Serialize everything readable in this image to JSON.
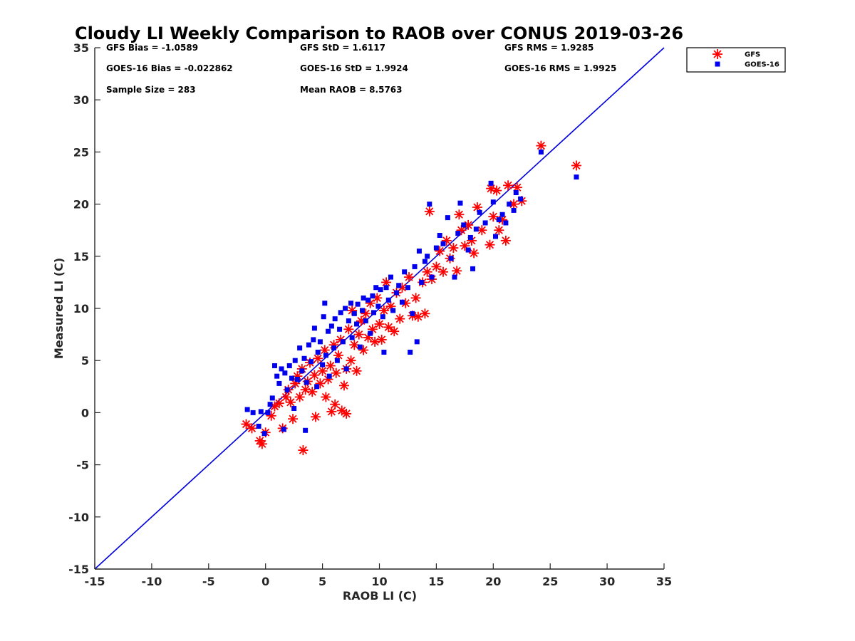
{
  "chart_data": {
    "type": "scatter",
    "title": "Cloudy LI Weekly Comparison to RAOB over CONUS 2019-03-26",
    "xlabel": "RAOB LI (C)",
    "ylabel": "Measured LI (C)",
    "xlim": [
      -15,
      35
    ],
    "ylim": [
      -15,
      35
    ],
    "xticks": [
      -15,
      -10,
      -5,
      0,
      5,
      10,
      15,
      20,
      25,
      30,
      35
    ],
    "yticks": [
      -15,
      -10,
      -5,
      0,
      5,
      10,
      15,
      20,
      25,
      30,
      35
    ],
    "grid": false,
    "legend_position": "top-right-outside",
    "stats": [
      {
        "text": "GFS Bias = -1.0589",
        "col": 0,
        "row": 0
      },
      {
        "text": "GFS StD = 1.6117",
        "col": 1,
        "row": 0
      },
      {
        "text": "GFS RMS = 1.9285",
        "col": 2,
        "row": 0
      },
      {
        "text": "GOES-16 Bias = -0.022862",
        "col": 0,
        "row": 1
      },
      {
        "text": "GOES-16 StD = 1.9924",
        "col": 1,
        "row": 1
      },
      {
        "text": "GOES-16 RMS = 1.9925",
        "col": 2,
        "row": 1
      },
      {
        "text": "Sample Size = 283",
        "col": 0,
        "row": 2
      },
      {
        "text": "Mean RAOB = 8.5763",
        "col": 1,
        "row": 2
      }
    ],
    "reference_line": {
      "from": [
        -15,
        -15
      ],
      "to": [
        35,
        35
      ],
      "color": "#0000dd"
    },
    "series": [
      {
        "name": "GFS",
        "marker": "asterisk",
        "color": "#ff0000",
        "points": [
          [
            -1.7,
            -1.1
          ],
          [
            -1.2,
            -1.5
          ],
          [
            -0.5,
            -2.7
          ],
          [
            -0.3,
            -3.0
          ],
          [
            0.0,
            -1.9
          ],
          [
            0.5,
            -0.3
          ],
          [
            0.8,
            0.6
          ],
          [
            1.2,
            0.9
          ],
          [
            1.5,
            -1.5
          ],
          [
            1.8,
            1.5
          ],
          [
            2.0,
            2.2
          ],
          [
            2.2,
            1.0
          ],
          [
            2.4,
            -0.6
          ],
          [
            2.6,
            2.8
          ],
          [
            2.8,
            3.5
          ],
          [
            3.0,
            1.5
          ],
          [
            3.2,
            4.2
          ],
          [
            3.3,
            -3.6
          ],
          [
            3.5,
            2.2
          ],
          [
            3.7,
            3.0
          ],
          [
            3.9,
            4.8
          ],
          [
            4.1,
            2.0
          ],
          [
            4.3,
            3.6
          ],
          [
            4.4,
            -0.4
          ],
          [
            4.6,
            5.2
          ],
          [
            4.8,
            2.8
          ],
          [
            5.0,
            4.0
          ],
          [
            5.2,
            6.0
          ],
          [
            5.3,
            1.5
          ],
          [
            5.5,
            3.2
          ],
          [
            5.7,
            4.5
          ],
          [
            5.8,
            0.1
          ],
          [
            6.0,
            6.5
          ],
          [
            6.1,
            0.8
          ],
          [
            6.2,
            3.8
          ],
          [
            6.4,
            5.5
          ],
          [
            6.6,
            7.0
          ],
          [
            6.7,
            0.2
          ],
          [
            6.9,
            2.6
          ],
          [
            7.1,
            -0.1
          ],
          [
            7.1,
            4.2
          ],
          [
            7.3,
            8.0
          ],
          [
            7.5,
            5.0
          ],
          [
            7.6,
            9.8
          ],
          [
            7.8,
            6.5
          ],
          [
            8.0,
            4.0
          ],
          [
            8.2,
            7.5
          ],
          [
            8.4,
            8.8
          ],
          [
            8.6,
            6.0
          ],
          [
            8.8,
            9.5
          ],
          [
            9.0,
            7.2
          ],
          [
            9.2,
            10.5
          ],
          [
            9.4,
            8.0
          ],
          [
            9.6,
            6.8
          ],
          [
            9.8,
            11.0
          ],
          [
            10.0,
            8.5
          ],
          [
            10.2,
            7.0
          ],
          [
            10.4,
            9.8
          ],
          [
            10.6,
            12.5
          ],
          [
            10.8,
            8.2
          ],
          [
            11.0,
            10.2
          ],
          [
            11.3,
            7.8
          ],
          [
            11.5,
            11.5
          ],
          [
            11.8,
            9.0
          ],
          [
            12.0,
            12.0
          ],
          [
            12.3,
            10.5
          ],
          [
            12.6,
            13.0
          ],
          [
            12.9,
            9.3
          ],
          [
            13.2,
            11.0
          ],
          [
            13.4,
            9.2
          ],
          [
            13.8,
            12.5
          ],
          [
            14.0,
            9.5
          ],
          [
            14.2,
            13.5
          ],
          [
            14.4,
            19.3
          ],
          [
            14.6,
            12.8
          ],
          [
            15.0,
            14.0
          ],
          [
            15.3,
            15.5
          ],
          [
            15.6,
            13.5
          ],
          [
            15.9,
            16.5
          ],
          [
            16.2,
            14.8
          ],
          [
            16.5,
            15.8
          ],
          [
            16.8,
            13.6
          ],
          [
            17.0,
            19.0
          ],
          [
            17.2,
            17.5
          ],
          [
            17.5,
            16.0
          ],
          [
            17.8,
            18.0
          ],
          [
            18.1,
            16.5
          ],
          [
            18.3,
            15.3
          ],
          [
            18.6,
            19.7
          ],
          [
            19.0,
            17.5
          ],
          [
            19.7,
            16.1
          ],
          [
            19.8,
            21.5
          ],
          [
            20.0,
            18.8
          ],
          [
            20.3,
            21.3
          ],
          [
            20.5,
            17.5
          ],
          [
            20.8,
            18.5
          ],
          [
            21.1,
            16.5
          ],
          [
            21.3,
            21.8
          ],
          [
            21.8,
            20.0
          ],
          [
            22.1,
            21.6
          ],
          [
            22.5,
            20.3
          ],
          [
            24.2,
            25.6
          ],
          [
            27.3,
            23.7
          ]
        ]
      },
      {
        "name": "GOES-16",
        "marker": "square",
        "color": "#0000ee",
        "points": [
          [
            -1.6,
            0.3
          ],
          [
            -1.1,
            0.0
          ],
          [
            -0.6,
            -1.3
          ],
          [
            -0.4,
            0.1
          ],
          [
            -0.1,
            -2.0
          ],
          [
            0.2,
            0.0
          ],
          [
            0.4,
            0.8
          ],
          [
            0.6,
            1.4
          ],
          [
            0.8,
            4.5
          ],
          [
            1.0,
            3.5
          ],
          [
            1.2,
            2.8
          ],
          [
            1.4,
            4.2
          ],
          [
            1.6,
            -1.6
          ],
          [
            1.7,
            3.8
          ],
          [
            1.9,
            2.2
          ],
          [
            2.1,
            4.5
          ],
          [
            2.3,
            3.3
          ],
          [
            2.5,
            0.4
          ],
          [
            2.6,
            5.0
          ],
          [
            2.8,
            3.2
          ],
          [
            3.0,
            6.2
          ],
          [
            3.2,
            4.0
          ],
          [
            3.4,
            5.2
          ],
          [
            3.5,
            -1.7
          ],
          [
            3.6,
            2.9
          ],
          [
            3.8,
            6.5
          ],
          [
            4.0,
            4.9
          ],
          [
            4.2,
            7.0
          ],
          [
            4.3,
            8.1
          ],
          [
            4.5,
            2.5
          ],
          [
            4.6,
            5.8
          ],
          [
            4.8,
            6.8
          ],
          [
            5.0,
            4.6
          ],
          [
            5.1,
            9.2
          ],
          [
            5.2,
            10.5
          ],
          [
            5.3,
            5.5
          ],
          [
            5.5,
            7.8
          ],
          [
            5.6,
            3.5
          ],
          [
            5.8,
            8.3
          ],
          [
            6.0,
            6.2
          ],
          [
            6.1,
            9.0
          ],
          [
            6.3,
            5.0
          ],
          [
            6.5,
            8.0
          ],
          [
            6.6,
            9.6
          ],
          [
            6.8,
            6.8
          ],
          [
            7.0,
            10.0
          ],
          [
            7.1,
            4.2
          ],
          [
            7.3,
            8.8
          ],
          [
            7.5,
            10.5
          ],
          [
            7.6,
            7.2
          ],
          [
            7.8,
            9.5
          ],
          [
            8.0,
            8.5
          ],
          [
            8.1,
            10.4
          ],
          [
            8.3,
            6.3
          ],
          [
            8.5,
            9.8
          ],
          [
            8.6,
            11.0
          ],
          [
            8.8,
            8.8
          ],
          [
            9.0,
            10.8
          ],
          [
            9.2,
            7.6
          ],
          [
            9.4,
            11.2
          ],
          [
            9.5,
            9.6
          ],
          [
            9.7,
            12.0
          ],
          [
            9.9,
            10.2
          ],
          [
            10.1,
            11.8
          ],
          [
            10.3,
            9.2
          ],
          [
            10.4,
            5.8
          ],
          [
            10.6,
            12.0
          ],
          [
            10.8,
            10.8
          ],
          [
            11.0,
            13.0
          ],
          [
            11.2,
            9.8
          ],
          [
            11.5,
            11.5
          ],
          [
            11.7,
            12.2
          ],
          [
            12.0,
            10.6
          ],
          [
            12.2,
            13.5
          ],
          [
            12.5,
            12.0
          ],
          [
            12.7,
            5.8
          ],
          [
            12.9,
            9.5
          ],
          [
            13.1,
            14.0
          ],
          [
            13.3,
            6.8
          ],
          [
            13.5,
            15.5
          ],
          [
            13.7,
            12.5
          ],
          [
            14.0,
            14.5
          ],
          [
            14.2,
            15.0
          ],
          [
            14.4,
            20.0
          ],
          [
            14.6,
            13.0
          ],
          [
            15.0,
            15.8
          ],
          [
            15.3,
            17.0
          ],
          [
            15.6,
            16.2
          ],
          [
            16.0,
            18.7
          ],
          [
            16.3,
            14.8
          ],
          [
            16.6,
            13.0
          ],
          [
            16.9,
            17.2
          ],
          [
            17.1,
            20.1
          ],
          [
            17.4,
            18.0
          ],
          [
            17.8,
            15.6
          ],
          [
            18.0,
            16.8
          ],
          [
            18.2,
            13.8
          ],
          [
            18.5,
            17.6
          ],
          [
            18.8,
            19.2
          ],
          [
            19.3,
            18.2
          ],
          [
            19.8,
            22.0
          ],
          [
            20.0,
            20.2
          ],
          [
            20.2,
            16.9
          ],
          [
            20.5,
            18.5
          ],
          [
            20.8,
            19.0
          ],
          [
            21.1,
            18.2
          ],
          [
            21.4,
            20.0
          ],
          [
            21.8,
            19.4
          ],
          [
            22.0,
            21.1
          ],
          [
            22.4,
            20.5
          ],
          [
            24.2,
            25.0
          ],
          [
            27.3,
            22.6
          ]
        ]
      }
    ]
  }
}
